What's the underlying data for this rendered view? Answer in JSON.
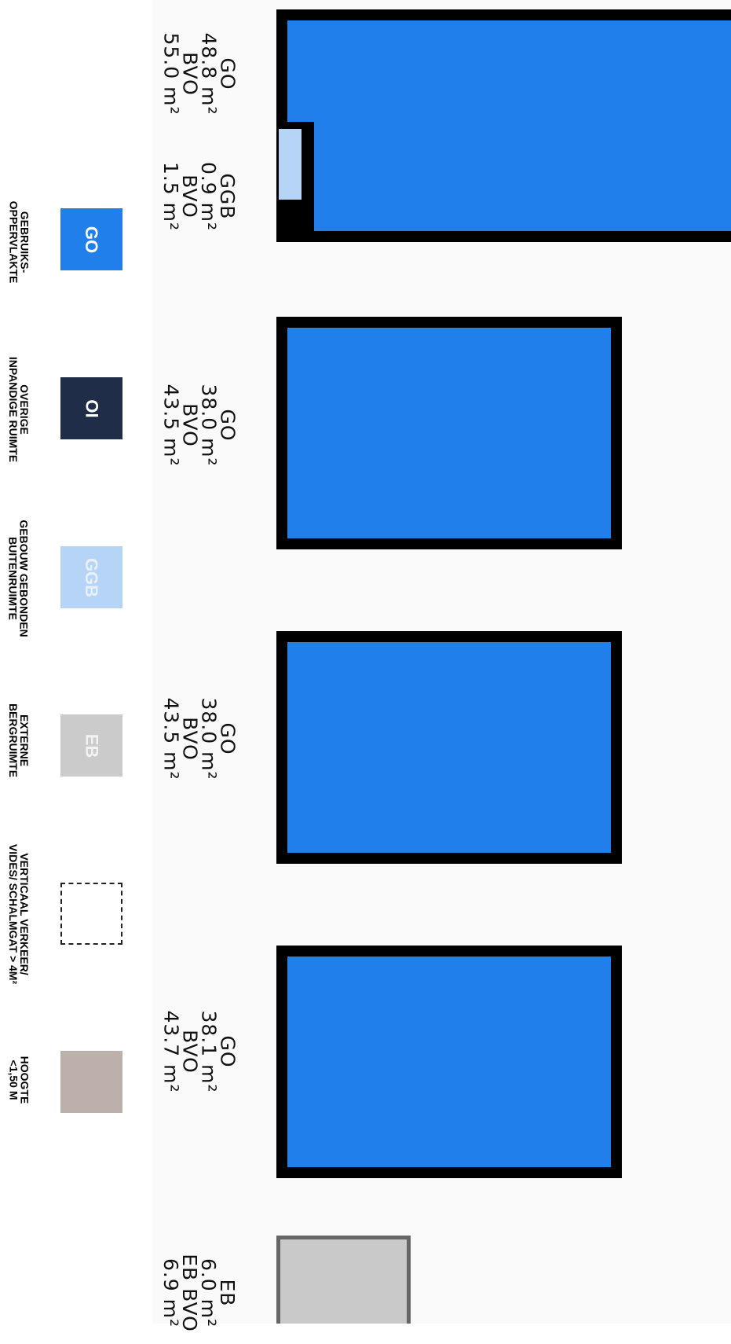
{
  "legend": [
    {
      "abbr": "GO",
      "label_line1": "GEBRUIKS-",
      "label_line2": "OPPERVLAKTE",
      "color": "#207fea"
    },
    {
      "abbr": "OI",
      "label_line1": "OVERIGE",
      "label_line2": "INPANDIGE RUIMTE",
      "color": "#1f2d48"
    },
    {
      "abbr": "GGB",
      "label_line1": "GEBOUW GEBONDEN",
      "label_line2": "BUITENRUIMTE",
      "color": "#b6d5f6"
    },
    {
      "abbr": "EB",
      "label_line1": "EXTERNE",
      "label_line2": "BERGRUIMTE",
      "color": "#cbcbcb"
    },
    {
      "abbr": "",
      "label_line1": "VERTICAAL VERKEER/",
      "label_line2": "VIDES/ SCHALMGAT > 4M²",
      "color": "dashed-outline"
    },
    {
      "abbr": "",
      "label_line1": "HOOGTE",
      "label_line2": "<1,50 M",
      "color": "#bdb0aa"
    }
  ],
  "areas": [
    {
      "type": "GO",
      "lines": [
        "GO",
        "48.8 m²",
        "BVO",
        "55.0 m²"
      ]
    },
    {
      "type": "GGB",
      "lines": [
        "GGB",
        "0.9 m²",
        "BVO",
        "1.5 m²"
      ]
    },
    {
      "type": "GO",
      "lines": [
        "GO",
        "38.0 m²",
        "BVO",
        "43.5 m²"
      ]
    },
    {
      "type": "GO",
      "lines": [
        "GO",
        "38.0 m²",
        "BVO",
        "43.5 m²"
      ]
    },
    {
      "type": "GO",
      "lines": [
        "GO",
        "38.1 m²",
        "BVO",
        "43.7 m²"
      ]
    },
    {
      "type": "EB",
      "lines": [
        "EB",
        "6.0 m²",
        "EB BVO",
        "6.9 m²"
      ]
    }
  ],
  "colors": {
    "go": "#207fea",
    "wall": "#000000",
    "ggb": "#b6d5f6",
    "eb": "#c9c9c9"
  }
}
